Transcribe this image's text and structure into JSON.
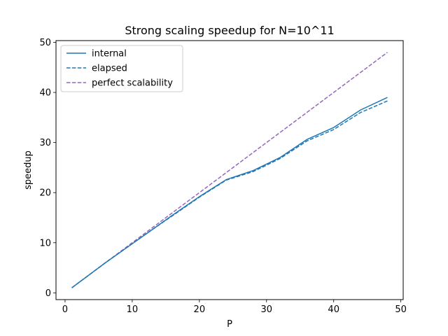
{
  "chart_data": {
    "type": "line",
    "title": "Strong scaling speedup for N=10^11",
    "xlabel": "P",
    "ylabel": "speedup",
    "xlim": [
      -1.35,
      50.35
    ],
    "ylim": [
      -1.35,
      50.35
    ],
    "x_ticks": [
      0,
      10,
      20,
      30,
      40,
      50
    ],
    "y_ticks": [
      0,
      10,
      20,
      30,
      40,
      50
    ],
    "x_tick_labels": [
      "0",
      "10",
      "20",
      "30",
      "40",
      "50"
    ],
    "y_tick_labels": [
      "0",
      "10",
      "20",
      "30",
      "40",
      "50"
    ],
    "grid": false,
    "legend_position": "top-left",
    "series": [
      {
        "name": "internal",
        "color": "#1f77b4",
        "style": "solid",
        "x": [
          1,
          2,
          4,
          6,
          8,
          10,
          12,
          16,
          20,
          24,
          28,
          32,
          36,
          40,
          44,
          48
        ],
        "y": [
          1.0,
          2.0,
          4.0,
          6.0,
          7.9,
          9.8,
          11.7,
          15.5,
          19.2,
          22.6,
          24.4,
          27.0,
          30.6,
          33.0,
          36.5,
          39.0
        ]
      },
      {
        "name": "elapsed",
        "color": "#1f77b4",
        "style": "dashed",
        "x": [
          1,
          2,
          4,
          6,
          8,
          10,
          12,
          16,
          20,
          24,
          28,
          32,
          36,
          40,
          44,
          48
        ],
        "y": [
          1.0,
          2.0,
          4.0,
          6.0,
          7.9,
          9.8,
          11.7,
          15.4,
          19.1,
          22.5,
          24.2,
          26.8,
          30.3,
          32.6,
          36.0,
          38.3
        ]
      },
      {
        "name": "perfect scalability",
        "color": "#9467bd",
        "style": "dashed",
        "x": [
          1,
          48
        ],
        "y": [
          1,
          48
        ]
      }
    ]
  }
}
